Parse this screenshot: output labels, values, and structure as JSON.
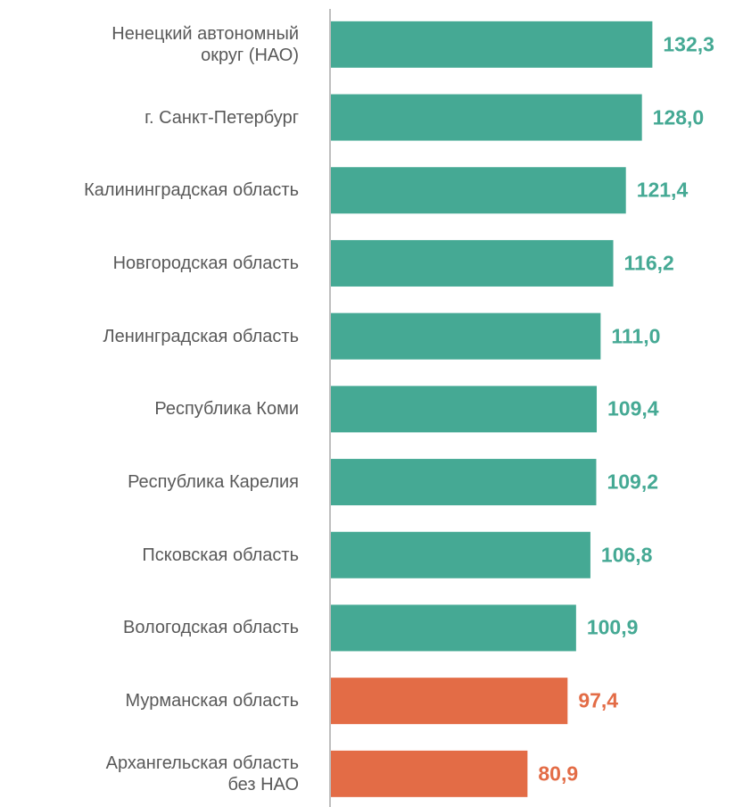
{
  "chart_data": {
    "type": "bar",
    "orientation": "horizontal",
    "categories": [
      "Ненецкий автономный\nокруг (НАО)",
      "г. Санкт-Петербург",
      "Калининградская область",
      "Новгородская область",
      "Ленинградская область",
      "Республика Коми",
      "Республика Карелия",
      "Псковская область",
      "Вологодская область",
      "Мурманская область",
      "Архангельская область\nбез НАО"
    ],
    "values": [
      132.3,
      128.0,
      121.4,
      116.2,
      111.0,
      109.4,
      109.2,
      106.8,
      100.9,
      97.4,
      80.9
    ],
    "value_labels": [
      "132,3",
      "128,0",
      "121,4",
      "116,2",
      "111,0",
      "109,4",
      "109,2",
      "106,8",
      "100,9",
      "97,4",
      "80,9"
    ],
    "colors": [
      "#45a994",
      "#45a994",
      "#45a994",
      "#45a994",
      "#45a994",
      "#45a994",
      "#45a994",
      "#45a994",
      "#45a994",
      "#e36c46",
      "#e36c46"
    ],
    "xlim": [
      0,
      169.6
    ]
  }
}
